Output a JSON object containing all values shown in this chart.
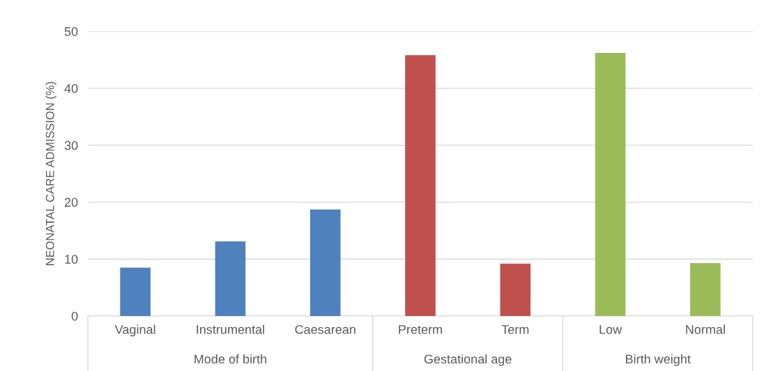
{
  "chart_data": {
    "type": "bar",
    "ylabel": "NEONATAL CARE ADMISSION (%)",
    "categories": [
      "Vaginal",
      "Instrumental",
      "Caesarean",
      "Preterm",
      "Term",
      "Low",
      "Normal"
    ],
    "series": [
      {
        "color": "#4f81bd",
        "values": [
          8.5,
          13.1,
          18.7,
          null,
          null,
          null,
          null
        ]
      },
      {
        "color": "#c0504d",
        "values": [
          null,
          null,
          null,
          45.8,
          9.2,
          null,
          null
        ]
      },
      {
        "color": "#9bbb59",
        "values": [
          null,
          null,
          null,
          null,
          null,
          46.2,
          9.3
        ]
      }
    ],
    "annotations": [
      "Mode of birth",
      "Gestational age",
      "Birth weight"
    ],
    "ylim": [
      0,
      50
    ],
    "yticks": [
      0,
      10,
      20,
      30,
      40,
      50
    ],
    "grid": "y"
  }
}
